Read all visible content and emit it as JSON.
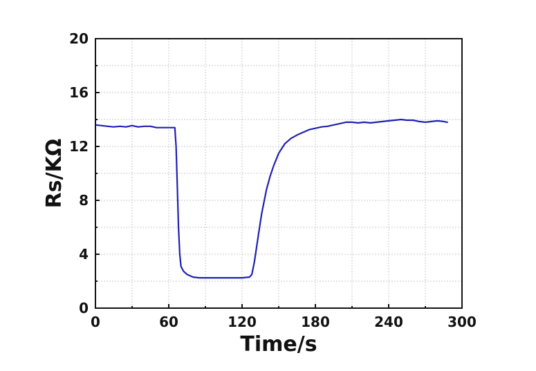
{
  "chart_data": {
    "type": "line",
    "xlabel": "Time/s",
    "ylabel": "Rs/KΩ",
    "xlim": [
      0,
      300
    ],
    "ylim": [
      0,
      20
    ],
    "xticks": [
      0,
      60,
      120,
      180,
      240,
      300
    ],
    "yticks": [
      0,
      4,
      8,
      12,
      16,
      20
    ],
    "xtick_labels": [
      "0",
      "60",
      "120",
      "180",
      "240",
      "300"
    ],
    "ytick_labels": [
      "0",
      "4",
      "8",
      "12",
      "16",
      "20"
    ],
    "grid": true,
    "series": [
      {
        "color": "#1f1fb4",
        "x": [
          0,
          5,
          10,
          15,
          20,
          25,
          30,
          35,
          40,
          45,
          50,
          55,
          60,
          63,
          65,
          66,
          67,
          68,
          69,
          70,
          72,
          75,
          80,
          85,
          90,
          100,
          110,
          120,
          126,
          128,
          130,
          132,
          134,
          136,
          138,
          140,
          143,
          146,
          150,
          155,
          160,
          165,
          170,
          175,
          180,
          185,
          190,
          195,
          200,
          205,
          210,
          215,
          220,
          225,
          230,
          235,
          240,
          245,
          250,
          255,
          260,
          265,
          270,
          275,
          280,
          285,
          288
        ],
        "values": [
          13.6,
          13.55,
          13.5,
          13.45,
          13.5,
          13.45,
          13.55,
          13.45,
          13.5,
          13.5,
          13.4,
          13.4,
          13.4,
          13.4,
          13.4,
          12.0,
          9.0,
          6.0,
          4.0,
          3.1,
          2.75,
          2.5,
          2.3,
          2.25,
          2.25,
          2.25,
          2.25,
          2.25,
          2.3,
          2.5,
          3.4,
          4.6,
          5.8,
          7.0,
          7.9,
          8.8,
          9.8,
          10.6,
          11.5,
          12.2,
          12.6,
          12.85,
          13.05,
          13.25,
          13.35,
          13.45,
          13.5,
          13.6,
          13.7,
          13.8,
          13.8,
          13.75,
          13.8,
          13.75,
          13.8,
          13.85,
          13.9,
          13.95,
          14.0,
          13.95,
          13.95,
          13.85,
          13.8,
          13.85,
          13.9,
          13.85,
          13.8
        ]
      }
    ]
  }
}
